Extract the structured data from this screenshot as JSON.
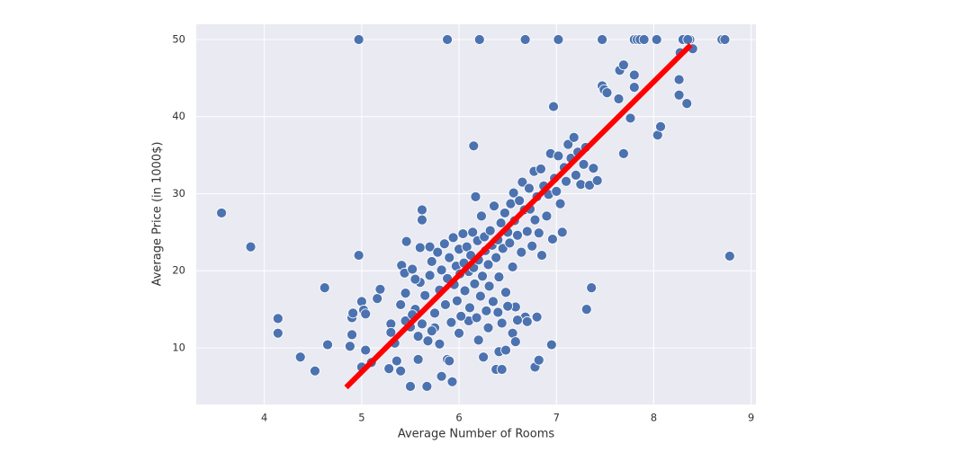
{
  "chart_data": {
    "type": "scatter",
    "xlabel": "Average Number of Rooms",
    "ylabel": "Average Price (in 1000$)",
    "xlim": [
      3.3,
      9.05
    ],
    "ylim": [
      2.65,
      51.98
    ],
    "xticks": [
      4,
      5,
      6,
      7,
      8,
      9
    ],
    "yticks": [
      10,
      20,
      30,
      40,
      50
    ],
    "grid": true,
    "background": "#eaeaf2",
    "series": [
      {
        "color": "#4c72b0",
        "x": [
          3.56,
          3.86,
          4.14,
          4.14,
          4.37,
          4.52,
          4.62,
          4.65,
          4.88,
          4.9,
          4.91,
          4.9,
          4.97,
          4.97,
          5.0,
          5.0,
          5.02,
          5.04,
          5.04,
          5.1,
          5.16,
          5.19,
          5.28,
          5.3,
          5.34,
          5.36,
          5.4,
          5.41,
          5.44,
          5.45,
          5.46,
          5.5,
          5.52,
          5.55,
          5.58,
          5.6,
          5.62,
          5.62,
          5.67,
          5.7,
          5.88,
          6.21,
          6.68,
          7.02,
          7.47,
          7.8,
          7.83,
          7.86,
          7.9,
          8.03,
          8.3,
          8.37,
          8.7,
          8.73,
          8.78,
          7.31,
          7.36,
          6.97,
          6.15,
          6.17,
          7.69,
          7.76,
          7.8,
          7.8,
          7.64,
          7.65,
          7.69,
          7.47,
          7.49,
          7.52,
          8.04,
          8.07,
          8.26,
          8.26,
          8.34,
          8.27,
          8.4,
          8.35,
          6.95,
          6.78,
          6.82,
          6.38,
          6.44,
          6.41,
          6.48,
          5.88,
          5.93,
          5.82,
          5.9,
          6.0,
          6.1,
          5.8,
          5.75,
          5.6,
          5.65,
          5.7,
          5.72,
          5.75,
          5.78,
          5.8,
          5.82,
          5.85,
          5.86,
          5.88,
          5.9,
          5.92,
          5.94,
          5.95,
          5.97,
          5.98,
          6.0,
          6.01,
          6.02,
          6.04,
          6.05,
          6.06,
          6.08,
          6.1,
          6.11,
          6.12,
          6.14,
          6.15,
          6.16,
          6.18,
          6.19,
          6.2,
          6.22,
          6.23,
          6.24,
          6.26,
          6.27,
          6.28,
          6.3,
          6.31,
          6.32,
          6.34,
          6.35,
          6.36,
          6.38,
          6.4,
          6.41,
          6.43,
          6.44,
          6.45,
          6.47,
          6.48,
          6.5,
          6.52,
          6.53,
          6.55,
          6.56,
          6.57,
          6.58,
          6.6,
          6.62,
          6.64,
          6.65,
          6.67,
          6.68,
          6.7,
          6.72,
          6.73,
          6.75,
          6.77,
          6.78,
          6.8,
          6.82,
          6.84,
          6.85,
          6.87,
          6.9,
          6.92,
          6.94,
          6.96,
          6.98,
          7.0,
          7.02,
          7.04,
          7.06,
          7.08,
          7.1,
          7.12,
          7.15,
          7.18,
          7.2,
          7.22,
          7.25,
          7.28,
          7.3,
          7.34,
          7.38,
          7.42,
          5.3,
          5.4,
          5.45,
          5.5,
          5.55,
          5.52,
          5.58,
          5.62,
          5.68,
          5.72,
          6.0,
          6.2,
          6.3,
          6.5,
          6.6,
          6.7,
          6.8,
          6.55,
          6.58,
          6.4,
          6.25
        ],
        "values": [
          27.5,
          23.1,
          13.8,
          11.9,
          8.8,
          7.0,
          17.8,
          10.4,
          10.2,
          13.9,
          14.5,
          11.7,
          22.0,
          50,
          7.5,
          16,
          14.9,
          14.4,
          9.7,
          8.1,
          16.4,
          17.6,
          7.3,
          13.1,
          10.6,
          8.3,
          7.0,
          20.7,
          19.7,
          13.5,
          23.8,
          5.0,
          20.2,
          15.0,
          8.5,
          23.0,
          27.9,
          26.6,
          5.0,
          23.1,
          50,
          50,
          50,
          50,
          50,
          50,
          50,
          50,
          50,
          50,
          50,
          50,
          50,
          50,
          21.9,
          15,
          17.8,
          41.3,
          36.2,
          29.6,
          35.2,
          39.8,
          43.8,
          45.4,
          42.3,
          46.0,
          46.7,
          44.0,
          43.5,
          43.1,
          37.6,
          38.7,
          42.8,
          44.8,
          41.7,
          48.3,
          48.8,
          50,
          10.4,
          7.5,
          8.4,
          7.2,
          7.2,
          9.5,
          9.7,
          8.5,
          5.6,
          6.3,
          8.3,
          12,
          13.5,
          10.5,
          12.6,
          18.5,
          16.8,
          19.4,
          21.2,
          14.5,
          22.4,
          17.5,
          20.1,
          23.5,
          15.6,
          19.0,
          21.7,
          13.3,
          24.3,
          18.2,
          20.6,
          16.1,
          22.8,
          19.6,
          14.1,
          24.8,
          21.0,
          17.4,
          23.1,
          19.9,
          15.2,
          22.0,
          25.0,
          20.4,
          18.3,
          13.9,
          23.9,
          21.4,
          16.7,
          27.1,
          19.3,
          24.4,
          22.6,
          14.8,
          20.8,
          18.0,
          25.2,
          23.3,
          16.0,
          28.4,
          21.7,
          24.0,
          19.2,
          26.2,
          13.2,
          22.9,
          27.5,
          17.2,
          25.0,
          23.6,
          28.7,
          20.5,
          30.1,
          26.5,
          15.3,
          24.6,
          29.1,
          22.4,
          31.5,
          27.9,
          14.0,
          25.1,
          30.7,
          28.0,
          23.2,
          32.9,
          26.6,
          29.6,
          24.9,
          33.2,
          22.0,
          31.0,
          27.1,
          29.9,
          35.2,
          24.1,
          32.0,
          30.3,
          34.9,
          28.7,
          25.0,
          33.4,
          31.6,
          36.4,
          34.6,
          37.3,
          32.4,
          35.4,
          31.2,
          33.8,
          36.0,
          31.1,
          33.3,
          31.7,
          12.0,
          15.6,
          17.1,
          12.7,
          18.9,
          14.3,
          11.5,
          13.1,
          10.9,
          12.2,
          11.9,
          11.0,
          12.6,
          15.4,
          13.6,
          13.4,
          14.0,
          11.9,
          10.8,
          14.6,
          8.8
        ]
      }
    ],
    "fit_line": {
      "x": [
        4.84,
        8.38
      ],
      "values": [
        4.87,
        49.3
      ],
      "color": "#ff0000"
    }
  }
}
